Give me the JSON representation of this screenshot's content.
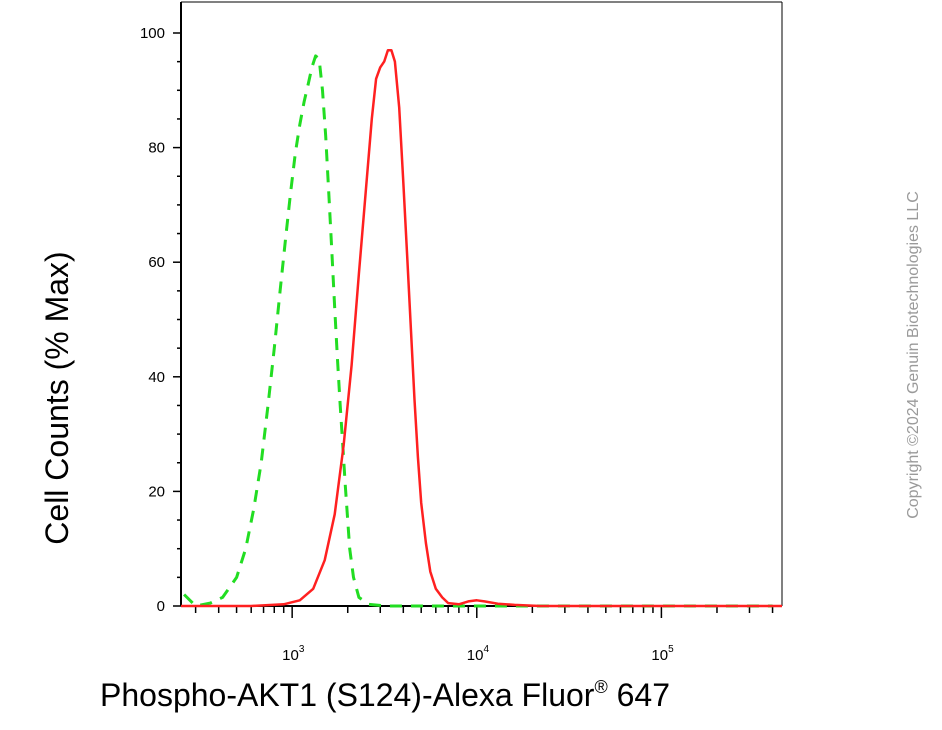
{
  "chart_data": {
    "type": "line",
    "x_scale": "log",
    "xlim": [
      250,
      450000
    ],
    "ylim": [
      0,
      102
    ],
    "xlabel": "Phospho-AKT1 (S124)-Alexa Fluor",
    "xlabel_sup": "®",
    "xlabel_suffix": " 647",
    "ylabel": "Cell Counts (% Max)",
    "x_ticks": [
      {
        "base": "10",
        "exp": "3",
        "value": 1000
      },
      {
        "base": "10",
        "exp": "4",
        "value": 10000
      },
      {
        "base": "10",
        "exp": "5",
        "value": 100000
      }
    ],
    "y_ticks": [
      0,
      20,
      40,
      60,
      80,
      100
    ],
    "grid": false,
    "legend": "none",
    "series": [
      {
        "color": "#22dd22",
        "style": "dashed",
        "x": [
          260,
          300,
          360,
          420,
          500,
          560,
          620,
          680,
          740,
          800,
          860,
          920,
          980,
          1040,
          1100,
          1160,
          1220,
          1280,
          1340,
          1400,
          1460,
          1520,
          1580,
          1640,
          1700,
          1760,
          1820,
          1880,
          1940,
          2000,
          2050,
          2150,
          2300,
          2600,
          3200,
          5000,
          10000,
          50000,
          400000
        ],
        "y": [
          2,
          0,
          0.5,
          1.5,
          5,
          10,
          17,
          25,
          35,
          45,
          55,
          64,
          72,
          79,
          84,
          88,
          91,
          94,
          96,
          95.5,
          90,
          82,
          72,
          62,
          52,
          43,
          35,
          28,
          21,
          15,
          10,
          5,
          1.5,
          0.3,
          0,
          0,
          0,
          0,
          0
        ]
      },
      {
        "color": "#ff2020",
        "style": "solid",
        "x": [
          250,
          600,
          900,
          1100,
          1300,
          1500,
          1700,
          1900,
          2100,
          2300,
          2500,
          2700,
          2850,
          3000,
          3150,
          3300,
          3450,
          3600,
          3800,
          4000,
          4200,
          4400,
          4600,
          4800,
          5000,
          5300,
          5600,
          6000,
          6500,
          7000,
          8000,
          9000,
          10000,
          11000,
          13000,
          16000,
          22000,
          40000,
          100000,
          450000
        ],
        "y": [
          0,
          0,
          0.3,
          1,
          3,
          8,
          16,
          28,
          42,
          58,
          72,
          85,
          92,
          94,
          95,
          97,
          97,
          95,
          87,
          74,
          61,
          48,
          36,
          26,
          18,
          11,
          6,
          3,
          1.5,
          0.5,
          0.3,
          0.8,
          1,
          0.8,
          0.4,
          0.2,
          0,
          0,
          0,
          0
        ]
      }
    ]
  },
  "watermark": "Copyright ©2024 Genuin Biotechnologies LLC"
}
